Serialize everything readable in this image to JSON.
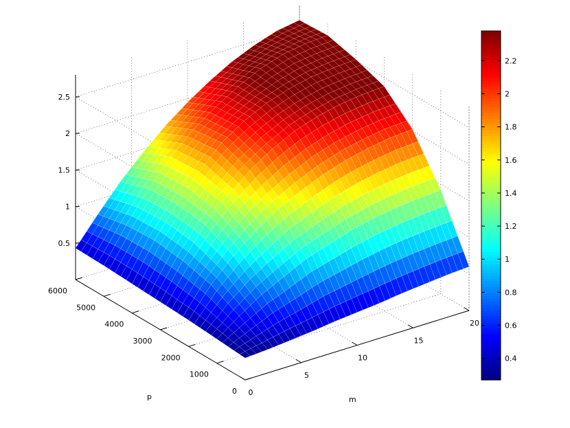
{
  "chart_data": {
    "type": "surface",
    "title": "",
    "xlabel": "m",
    "ylabel": "p",
    "zlabel": "",
    "x_range": [
      0,
      20
    ],
    "y_range": [
      0,
      6000
    ],
    "z_range": [
      0,
      2.8
    ],
    "colormap": "jet",
    "colorbar_range": [
      0.27,
      2.38
    ],
    "grid": true,
    "x_ticks": [
      "0",
      "5",
      "10",
      "15",
      "20"
    ],
    "y_ticks": [
      "0",
      "1000",
      "2000",
      "3000",
      "4000",
      "5000",
      "6000"
    ],
    "z_ticks": [
      "0.5",
      "1",
      "1.5",
      "2",
      "2.5"
    ],
    "colorbar_ticks": [
      "0.4",
      "0.6",
      "0.8",
      "1",
      "1.2",
      "1.4",
      "1.6",
      "1.8",
      "2",
      "2.2"
    ],
    "series": [
      {
        "m": [
          0,
          2,
          4,
          6,
          8,
          10,
          12,
          14,
          16,
          18,
          20
        ],
        "p": [
          0,
          1000,
          2000,
          3000,
          4000,
          5000,
          6000
        ],
        "z": [
          [
            0.3,
            0.32,
            0.35,
            0.38,
            0.42,
            0.45,
            0.48,
            0.52,
            0.55,
            0.58,
            0.6
          ],
          [
            0.33,
            0.55,
            0.75,
            0.9,
            1.05,
            1.15,
            1.25,
            1.32,
            1.37,
            1.4,
            1.42
          ],
          [
            0.36,
            0.75,
            1.05,
            1.3,
            1.5,
            1.65,
            1.78,
            1.88,
            1.95,
            2.0,
            2.02
          ],
          [
            0.38,
            0.85,
            1.25,
            1.55,
            1.8,
            2.0,
            2.15,
            2.25,
            2.32,
            2.36,
            2.38
          ],
          [
            0.4,
            0.9,
            1.3,
            1.65,
            1.95,
            2.15,
            2.3,
            2.4,
            2.47,
            2.5,
            2.52
          ],
          [
            0.42,
            0.88,
            1.28,
            1.62,
            1.9,
            2.12,
            2.3,
            2.45,
            2.55,
            2.6,
            2.62
          ],
          [
            0.43,
            0.8,
            1.15,
            1.45,
            1.72,
            1.95,
            2.15,
            2.32,
            2.45,
            2.55,
            2.6
          ]
        ]
      }
    ]
  }
}
